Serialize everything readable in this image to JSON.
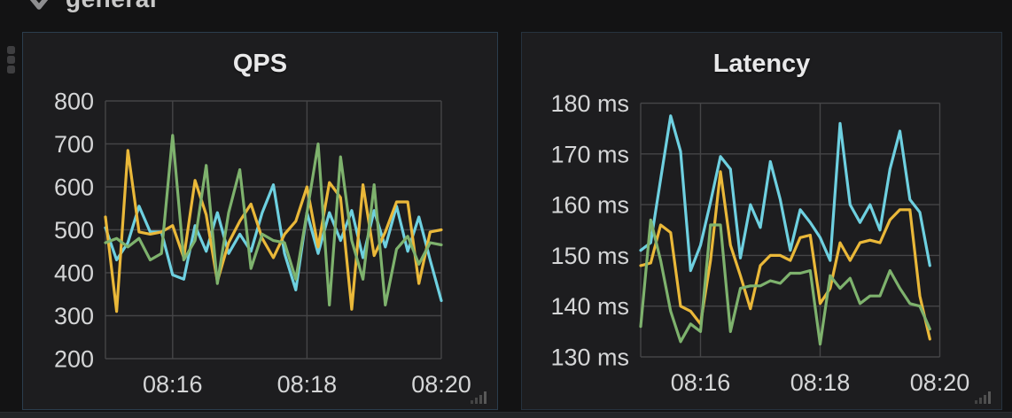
{
  "row_header": {
    "label": "general"
  },
  "colors": {
    "page_bg": "#131314",
    "panel_bg": "#1d1d1f",
    "panel_border": "#2b3d4d",
    "grid": "#454547",
    "axis_text": "#d5d6d7",
    "title_text": "#e9e9ea",
    "handle": "#4a4a4a",
    "series_cyan": "#6ED0E0",
    "series_yellow": "#EAB839",
    "series_green": "#7EB26D"
  },
  "chart_data": [
    {
      "type": "line",
      "title": "QPS",
      "grid": true,
      "legend": false,
      "x_start": "08:15:00",
      "point_interval_sec": 10,
      "x_domain_sec": [
        0,
        300
      ],
      "x_ticks": [
        {
          "sec": 60,
          "label": "08:16"
        },
        {
          "sec": 180,
          "label": "08:18"
        },
        {
          "sec": 300,
          "label": "08:20"
        }
      ],
      "ylim": [
        200,
        800
      ],
      "y_ticks": [
        {
          "value": 800,
          "label": "800"
        },
        {
          "value": 700,
          "label": "700"
        },
        {
          "value": 600,
          "label": "600"
        },
        {
          "value": 500,
          "label": "500"
        },
        {
          "value": 400,
          "label": "400"
        },
        {
          "value": 300,
          "label": "300"
        },
        {
          "value": 200,
          "label": "200"
        }
      ],
      "series": [
        {
          "name": "series-cyan",
          "color": "#6ED0E0",
          "values": [
            505,
            430,
            470,
            555,
            495,
            495,
            395,
            385,
            510,
            450,
            540,
            445,
            490,
            450,
            540,
            605,
            445,
            360,
            540,
            445,
            540,
            475,
            545,
            435,
            545,
            460,
            555,
            450,
            530,
            430,
            335
          ]
        },
        {
          "name": "series-yellow",
          "color": "#EAB839",
          "values": [
            530,
            310,
            685,
            495,
            490,
            495,
            510,
            435,
            615,
            535,
            380,
            470,
            520,
            560,
            480,
            435,
            490,
            520,
            600,
            460,
            610,
            575,
            315,
            605,
            440,
            495,
            565,
            565,
            375,
            495,
            500
          ]
        },
        {
          "name": "series-green",
          "color": "#7EB26D",
          "values": [
            470,
            480,
            460,
            480,
            430,
            445,
            720,
            430,
            475,
            650,
            375,
            540,
            640,
            410,
            490,
            475,
            470,
            385,
            540,
            700,
            325,
            670,
            475,
            385,
            605,
            325,
            455,
            485,
            420,
            470,
            465
          ]
        }
      ]
    },
    {
      "type": "line",
      "title": "Latency",
      "grid": true,
      "legend": false,
      "x_start": "08:15:00",
      "point_interval_sec": 10,
      "x_domain_sec": [
        0,
        300
      ],
      "x_ticks": [
        {
          "sec": 60,
          "label": "08:16"
        },
        {
          "sec": 180,
          "label": "08:18"
        },
        {
          "sec": 300,
          "label": "08:20"
        }
      ],
      "ylim": [
        130,
        180
      ],
      "y_ticks": [
        {
          "value": 180,
          "label": "180 ms"
        },
        {
          "value": 170,
          "label": "170 ms"
        },
        {
          "value": 160,
          "label": "160 ms"
        },
        {
          "value": 150,
          "label": "150 ms"
        },
        {
          "value": 140,
          "label": "140 ms"
        },
        {
          "value": 130,
          "label": "130 ms"
        }
      ],
      "series": [
        {
          "name": "series-cyan",
          "color": "#6ED0E0",
          "values": [
            151,
            152.5,
            165,
            177.5,
            170.5,
            147,
            152,
            160.5,
            169.5,
            167,
            149.5,
            160,
            155.5,
            168.5,
            161,
            151,
            159,
            156.5,
            153.5,
            149,
            176,
            160,
            156.5,
            160,
            155,
            167,
            174.5,
            161,
            158.5,
            148
          ]
        },
        {
          "name": "series-yellow",
          "color": "#EAB839",
          "values": [
            148,
            148.5,
            156,
            154.5,
            140,
            139,
            136.5,
            149,
            166.5,
            152,
            146,
            139.5,
            148,
            150,
            150,
            149,
            153.5,
            154,
            140.5,
            143.5,
            152.5,
            149,
            152.5,
            153,
            152.5,
            157,
            159,
            159,
            142,
            133.5
          ]
        },
        {
          "name": "series-green",
          "color": "#7EB26D",
          "values": [
            136,
            157,
            149,
            139,
            133,
            136.5,
            135,
            156,
            156,
            135,
            143.5,
            144,
            144,
            145,
            144.5,
            146.5,
            146.5,
            147,
            132.5,
            146,
            143.5,
            145.5,
            140.5,
            142,
            142,
            147,
            143.5,
            140.5,
            140,
            135.5
          ]
        }
      ]
    }
  ]
}
